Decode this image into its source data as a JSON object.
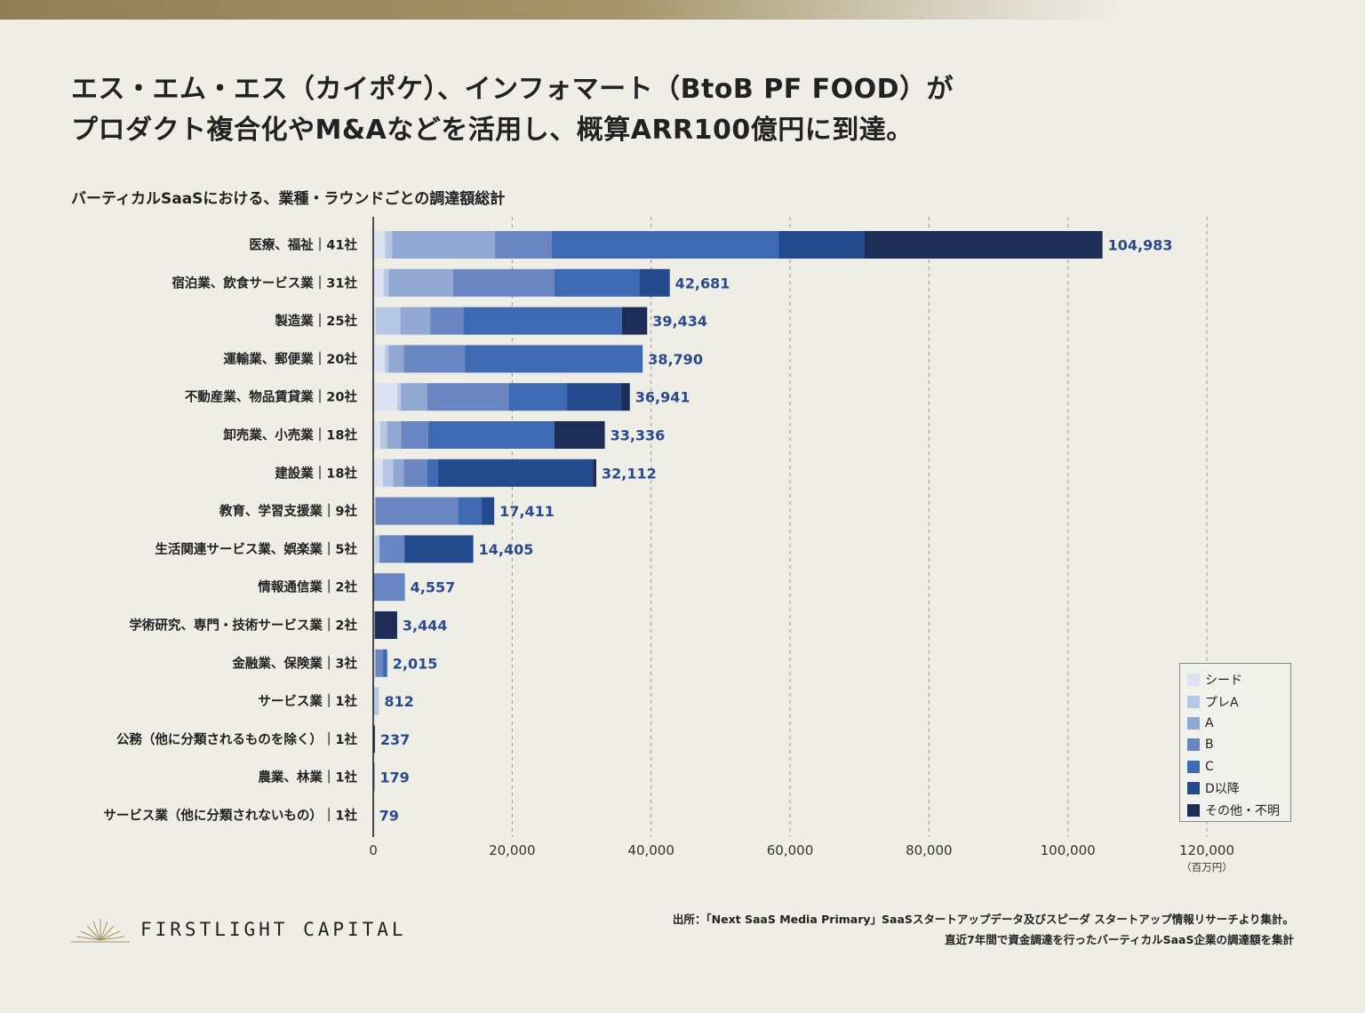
{
  "headline": {
    "line1": "エス・エム・エス（カイポケ）、インフォマート（BtoB PF FOOD）が",
    "line2": "プロダクト複合化やM&Aなどを活用し、概算ARR100億円に到達。"
  },
  "subtitle": "バーティカルSaaSにおける、業種・ラウンドごとの調達額総計",
  "chart_data": {
    "type": "bar",
    "orientation": "horizontal",
    "stacked": true,
    "title": "バーティカルSaaSにおける、業種・ラウンドごとの調達額総計",
    "unit": "（百万円）",
    "xlim": [
      0,
      120000
    ],
    "x_ticks": [
      0,
      20000,
      40000,
      60000,
      80000,
      100000,
      120000
    ],
    "x_tick_labels": [
      "0",
      "20,000",
      "40,000",
      "60,000",
      "80,000",
      "100,000",
      "120,000"
    ],
    "grid": "vertical dashed",
    "legend_position": "bottom-right",
    "categories": [
      "医療、福祉｜41社",
      "宿泊業、飲食サービス業｜31社",
      "製造業｜25社",
      "運輸業、郵便業｜20社",
      "不動産業、物品賃貸業｜20社",
      "卸売業、小売業｜18社",
      "建設業｜18社",
      "教育、学習支援業｜9社",
      "生活関連サービス業、娯楽業｜5社",
      "情報通信業｜2社",
      "学術研究、専門・技術サービス業｜2社",
      "金融業、保険業｜3社",
      "サービス業｜1社",
      "公務（他に分類されるものを除く）｜1社",
      "農業、林業｜1社",
      "サービス業（他に分類されないもの）｜1社"
    ],
    "totals": [
      104983,
      42681,
      39434,
      38790,
      36941,
      33336,
      32112,
      17411,
      14405,
      4557,
      3444,
      2015,
      812,
      237,
      179,
      79
    ],
    "total_labels": [
      "104,983",
      "42,681",
      "39,434",
      "38,790",
      "36,941",
      "33,336",
      "32,112",
      "17,411",
      "14,405",
      "4,557",
      "3,444",
      "2,015",
      "812",
      "237",
      "179",
      "79"
    ],
    "series": [
      {
        "name": "シード",
        "color": "#dbe3f3",
        "values": [
          1700,
          1500,
          400,
          1700,
          3500,
          1000,
          1400,
          300,
          300,
          0,
          200,
          300,
          0,
          0,
          0,
          0
        ]
      },
      {
        "name": "プレA",
        "color": "#b6c8e4",
        "values": [
          1000,
          700,
          3500,
          500,
          500,
          1000,
          1500,
          0,
          600,
          0,
          0,
          0,
          812,
          0,
          0,
          79
        ]
      },
      {
        "name": "A",
        "color": "#91a8d3",
        "values": [
          14800,
          9300,
          4300,
          2200,
          3800,
          2000,
          1500,
          0,
          0,
          0,
          0,
          0,
          0,
          0,
          0,
          0
        ]
      },
      {
        "name": "B",
        "color": "#6986c3",
        "values": [
          8200,
          14600,
          4800,
          8800,
          11700,
          3900,
          3400,
          11900,
          3600,
          4557,
          0,
          1100,
          0,
          0,
          0,
          0
        ]
      },
      {
        "name": "C",
        "color": "#3e69b3",
        "values": [
          32700,
          12200,
          22800,
          25590,
          8400,
          18200,
          1500,
          3400,
          0,
          0,
          0,
          615,
          0,
          0,
          179,
          0
        ]
      },
      {
        "name": "D以降",
        "color": "#234a8c",
        "values": [
          12300,
          4281,
          0,
          0,
          7800,
          0,
          22312,
          1811,
          9905,
          0,
          0,
          0,
          0,
          0,
          0,
          0
        ]
      },
      {
        "name": "その他・不明",
        "color": "#1e2c58",
        "values": [
          34283,
          100,
          3634,
          0,
          1241,
          7236,
          500,
          0,
          0,
          0,
          3244,
          0,
          0,
          237,
          0,
          0
        ]
      }
    ]
  },
  "brand": {
    "name": "FIRSTLIGHT CAPITAL"
  },
  "source": {
    "line1": "出所：「Next SaaS Media Primary」SaaSスタートアップデータ及びスピーダ スタートアップ情報リサーチより集計。",
    "line2": "直近7年間で資金調達を行ったバーティカルSaaS企業の調達額を集計"
  }
}
